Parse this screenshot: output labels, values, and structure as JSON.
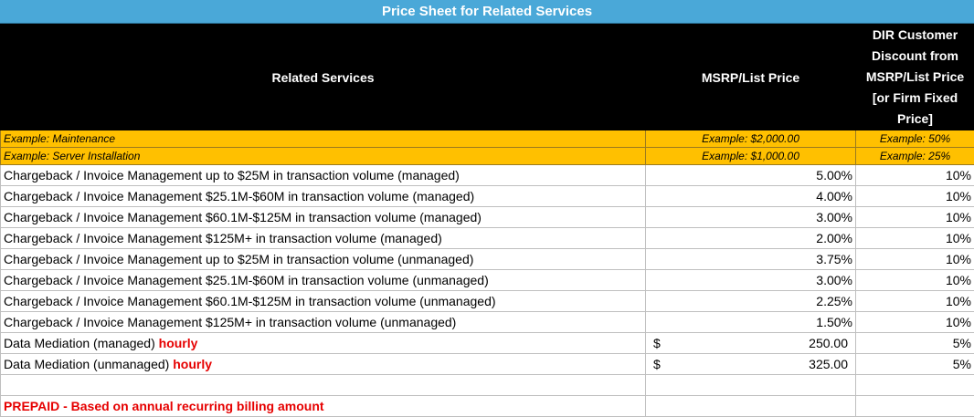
{
  "title": "Price Sheet for Related Services",
  "headers": {
    "service": "Related Services",
    "msrp": "MSRP/List Price",
    "discount": "DIR Customer Discount from MSRP/List Price [or Firm Fixed Price]"
  },
  "examples": [
    {
      "label": "Example: Maintenance",
      "price": "Example: $2,000.00",
      "discount": "Example: 50%"
    },
    {
      "label": "Example: Server  Installation",
      "price": "Example:  $1,000.00",
      "discount": "Example: 25%"
    }
  ],
  "rows": [
    {
      "service": "Chargeback / Invoice Management up to $25M in transaction volume (managed)",
      "price": "5.00%",
      "discount": "10%"
    },
    {
      "service": "Chargeback / Invoice Management $25.1M-$60M in transaction volume (managed)",
      "price": "4.00%",
      "discount": "10%"
    },
    {
      "service": "Chargeback / Invoice Management $60.1M-$125M in transaction volume (managed)",
      "price": "3.00%",
      "discount": "10%"
    },
    {
      "service": "Chargeback / Invoice Management $125M+ in transaction volume (managed)",
      "price": "2.00%",
      "discount": "10%"
    },
    {
      "service": "Chargeback / Invoice Management up to $25M in transaction volume (unmanaged)",
      "price": "3.75%",
      "discount": "10%"
    },
    {
      "service": "Chargeback / Invoice Management $25.1M-$60M in transaction volume (unmanaged)",
      "price": "3.00%",
      "discount": "10%"
    },
    {
      "service": "Chargeback / Invoice Management $60.1M-$125M in transaction volume (unmanaged)",
      "price": "2.25%",
      "discount": "10%"
    },
    {
      "service": "Chargeback / Invoice Management $125M+ in transaction volume (unmanaged)",
      "price": "1.50%",
      "discount": "10%"
    }
  ],
  "mediation": [
    {
      "service": "Data Mediation (managed) ",
      "unit": "hourly",
      "currency": "$",
      "amount": "250.00",
      "discount": "5%"
    },
    {
      "service": "Data Mediation (unmanaged) ",
      "unit": "hourly",
      "currency": "$",
      "amount": "325.00",
      "discount": "5%"
    }
  ],
  "prepaid": "PREPAID - Based on annual recurring billing amount",
  "colors": {
    "title_bg": "#4aa8d8",
    "header_bg": "#000000",
    "example_bg": "#ffc000",
    "alert_red": "#e60000"
  }
}
